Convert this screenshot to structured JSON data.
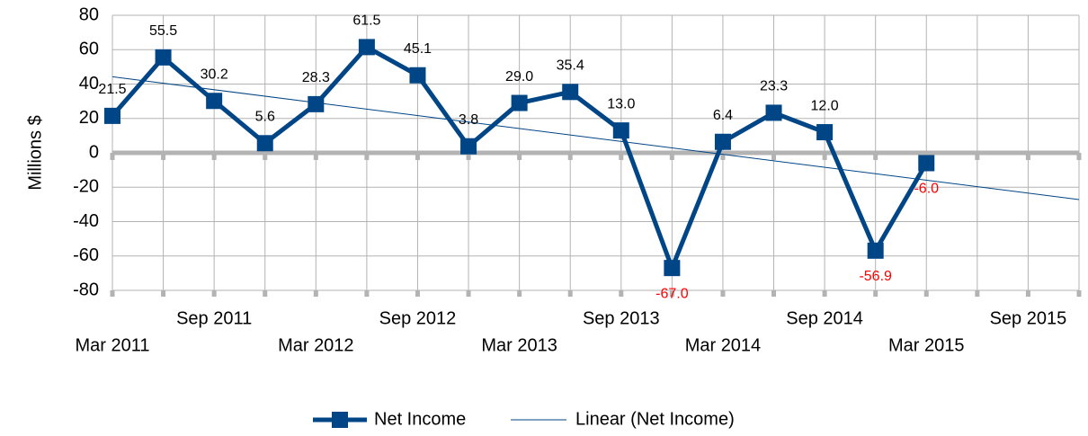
{
  "chart_data": {
    "type": "line",
    "y_label": "Millions $",
    "categories": [
      "Mar 2011",
      null,
      "Sep 2011",
      null,
      "Mar 2012",
      null,
      "Sep 2012",
      null,
      "Mar 2013",
      null,
      "Sep 2013",
      null,
      "Mar 2014",
      null,
      "Sep 2014",
      null,
      "Mar 2015",
      null,
      "Sep 2015",
      null
    ],
    "series": [
      {
        "name": "Net Income",
        "color": "#004586",
        "values": [
          21.5,
          55.5,
          30.2,
          5.6,
          28.3,
          61.5,
          45.1,
          3.8,
          29.0,
          35.4,
          13.0,
          -67.0,
          6.4,
          23.3,
          12.0,
          -56.9,
          -6.0,
          null,
          null,
          null
        ],
        "value_labels": [
          "21.5",
          "55.5",
          "30.2",
          "5.6",
          "28.3",
          "61.5",
          "45.1",
          "3.8",
          "29.0",
          "35.4",
          "13.0",
          "-67.0",
          "6.4",
          "23.3",
          "12.0",
          "-56.9",
          "-6.0",
          null,
          null,
          null
        ],
        "negative_label_color": "#ff0000",
        "trendline": {
          "type": "linear",
          "name": "Linear (Net Income)"
        }
      }
    ],
    "ylim": [
      -80,
      80
    ],
    "yticks": [
      -80,
      -60,
      -40,
      -20,
      0,
      20,
      40,
      60,
      80
    ],
    "grid": true,
    "legend": "bottom"
  }
}
